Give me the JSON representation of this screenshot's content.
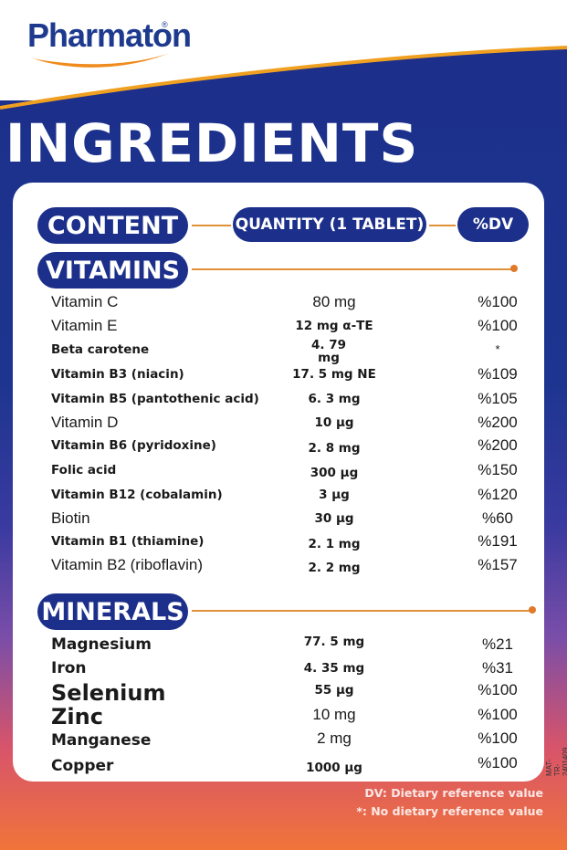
{
  "brand": {
    "name": "Pharmaton",
    "registered": "®"
  },
  "title": "INGREDIENTS",
  "header": {
    "content": "CONTENT",
    "quantity": "QUANTITY (1 TABLET)",
    "dv": "%DV"
  },
  "vitamins": {
    "label": "VITAMINS",
    "items": [
      {
        "name": "Vitamin C",
        "qty": "80 mg",
        "dv": "%100"
      },
      {
        "name": "Vitamin E",
        "qty": "12 mg α-TE",
        "dv": "%100"
      },
      {
        "name": "Beta carotene",
        "qty": "4. 79 mg",
        "dv": "*"
      },
      {
        "name": "Vitamin B3 (niacin)",
        "qty": "17. 5 mg NE",
        "dv": "%109"
      },
      {
        "name": "Vitamin B5 (pantothenic acid)",
        "qty": "6. 3 mg",
        "dv": "%105"
      },
      {
        "name": "Vitamin D",
        "qty": "10 μg",
        "dv": "%200"
      },
      {
        "name": "Vitamin B6 (pyridoxine)",
        "qty": "2. 8 mg",
        "dv": "%200"
      },
      {
        "name": "Folic acid",
        "qty": "300 μg",
        "dv": "%150"
      },
      {
        "name": "Vitamin B12 (cobalamin)",
        "qty": "3 μg",
        "dv": "%120"
      },
      {
        "name": "Biotin",
        "qty": "30 μg",
        "dv": "%60"
      },
      {
        "name": "Vitamin B1 (thiamine)",
        "qty": "2. 1 mg",
        "dv": "%191"
      },
      {
        "name": "Vitamin B2 (riboflavin)",
        "qty": "2. 2 mg",
        "dv": "%157"
      }
    ]
  },
  "minerals": {
    "label": "MINERALS",
    "items": [
      {
        "name": "Magnesium",
        "qty": "77. 5 mg",
        "dv": "%21"
      },
      {
        "name": "Iron",
        "qty": "4. 35 mg",
        "dv": "%31"
      },
      {
        "name": "Selenium",
        "qty": "55 μg",
        "dv": "%100"
      },
      {
        "name": "Zinc",
        "qty": "10 mg",
        "dv": "%100"
      },
      {
        "name": "Manganese",
        "qty": "2 mg",
        "dv": "%100"
      },
      {
        "name": "Copper",
        "qty": "1000 μg",
        "dv": "%100"
      }
    ]
  },
  "footnotes": {
    "dv": "DV: Dietary reference value",
    "asterisk": "*: No dietary reference value"
  },
  "code": "MAT-TR-2401409",
  "colors": {
    "navy": "#1c2f8a",
    "orange": "#e07a2a",
    "white": "#ffffff"
  }
}
